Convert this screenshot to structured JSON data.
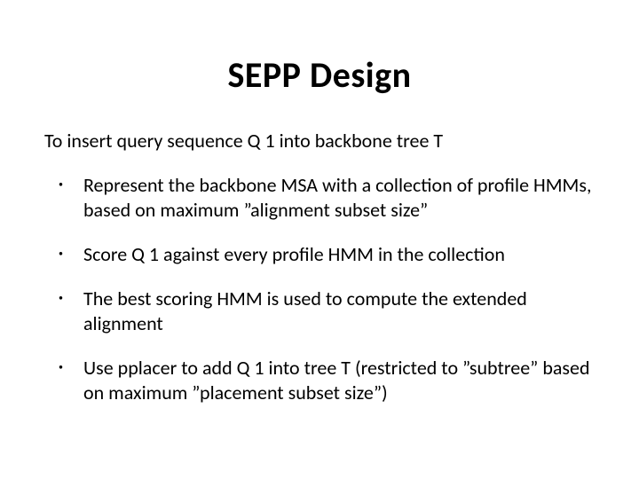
{
  "title": "SEPP Design",
  "intro": "To insert query sequence Q 1 into backbone tree T",
  "bullets": [
    "Represent the backbone MSA with a collection of profile HMMs, based on maximum ”alignment subset size”",
    "Score Q 1 against every profile HMM in the collection",
    "The best scoring HMM is used to compute the extended alignment",
    "Use pplacer to add Q 1 into tree T (restricted to ”subtree” based on maximum ”placement subset size”)"
  ],
  "style": {
    "background_color": "#ffffff",
    "text_color": "#000000",
    "title_fontsize_pt": 30,
    "title_weight": "bold",
    "body_fontsize_pt": 17,
    "font_family": "Calibri"
  }
}
